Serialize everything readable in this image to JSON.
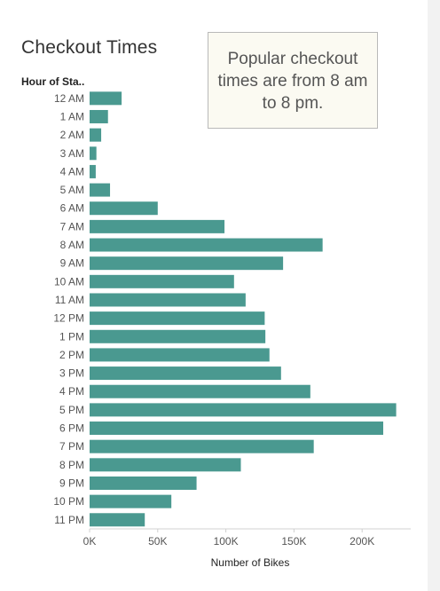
{
  "title": "Checkout Times",
  "row_header": "Hour of Sta..",
  "annotation": {
    "lines": [
      "Popular checkout",
      "times are from 8 am",
      "to 8 pm."
    ]
  },
  "colors": {
    "bar": "#4a9990",
    "axis": "#d0d0d0",
    "text": "#555555"
  },
  "chart_data": {
    "type": "bar",
    "orientation": "horizontal",
    "categories": [
      "12 AM",
      "1 AM",
      "2 AM",
      "3 AM",
      "4 AM",
      "5 AM",
      "6 AM",
      "7 AM",
      "8 AM",
      "9 AM",
      "10 AM",
      "11 AM",
      "12 PM",
      "1 PM",
      "2 PM",
      "3 PM",
      "4 PM",
      "5 PM",
      "6 PM",
      "7 PM",
      "8 PM",
      "9 PM",
      "10 PM",
      "11 PM"
    ],
    "values": [
      23500,
      13500,
      8500,
      5000,
      4500,
      15000,
      50000,
      99000,
      171000,
      142000,
      106000,
      114500,
      128500,
      129000,
      132000,
      140500,
      162000,
      225000,
      215500,
      164500,
      111000,
      78500,
      60000,
      40500
    ],
    "xlabel": "Number of Bikes",
    "ylabel": "Hour of Sta..",
    "xlim": [
      0,
      235000
    ],
    "x_ticks": [
      0,
      50000,
      100000,
      150000,
      200000
    ],
    "x_tick_labels": [
      "0K",
      "50K",
      "100K",
      "150K",
      "200K"
    ],
    "grid": false
  }
}
